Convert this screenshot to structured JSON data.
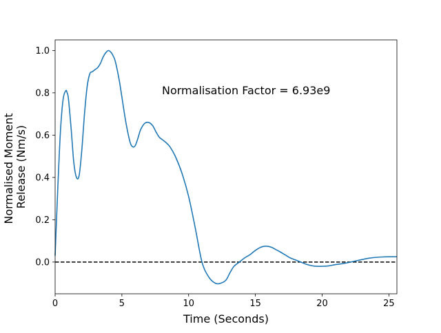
{
  "colors": {
    "series": "#1f77b4",
    "zero_line": "#000000",
    "axes": "#000000",
    "background": "#ffffff"
  },
  "chart_data": {
    "type": "line",
    "title": "",
    "xlabel": "Time (Seconds)",
    "ylabel_lines": [
      "Normalised Moment",
      "Release (Nm/s)"
    ],
    "xlim": [
      0,
      25.6
    ],
    "ylim": [
      -0.15,
      1.05
    ],
    "xticks": [
      0,
      5,
      10,
      15,
      20,
      25
    ],
    "yticks": [
      0.0,
      0.2,
      0.4,
      0.6,
      0.8,
      1.0
    ],
    "xtick_labels": [
      "0",
      "5",
      "10",
      "15",
      "20",
      "25"
    ],
    "ytick_labels": [
      "0.0",
      "0.2",
      "0.4",
      "0.6",
      "0.8",
      "1.0"
    ],
    "grid": false,
    "annotation": {
      "text": "Normalisation Factor = 6.93e9",
      "x": 8.0,
      "y": 0.81
    },
    "reference_line": {
      "y": 0.0,
      "style": "dashed"
    },
    "series": [
      {
        "x": [
          0,
          0.2,
          0.4,
          0.6,
          0.8,
          0.9,
          1.0,
          1.2,
          1.4,
          1.6,
          1.8,
          2.0,
          2.2,
          2.4,
          2.6,
          2.8,
          3.0,
          3.2,
          3.4,
          3.6,
          3.8,
          4.0,
          4.2,
          4.3,
          4.5,
          4.8,
          5.0,
          5.3,
          5.6,
          5.8,
          6.0,
          6.2,
          6.4,
          6.7,
          7.0,
          7.3,
          7.6,
          7.8,
          8.0,
          8.3,
          8.6,
          9.0,
          9.5,
          10.0,
          10.5,
          11.0,
          11.5,
          12.0,
          12.4,
          12.8,
          13.1,
          13.4,
          13.8,
          14.2,
          14.6,
          15.0,
          15.4,
          15.8,
          16.2,
          16.5,
          16.8,
          17.2,
          17.6,
          18.0,
          18.4,
          18.8,
          19.2,
          19.6,
          20.0,
          20.5,
          21.0,
          21.5,
          22.0,
          22.5,
          23.0,
          23.5,
          24.0,
          24.5,
          25.0,
          25.6
        ],
        "y": [
          0.03,
          0.35,
          0.62,
          0.77,
          0.81,
          0.8,
          0.77,
          0.63,
          0.47,
          0.4,
          0.41,
          0.53,
          0.7,
          0.83,
          0.89,
          0.9,
          0.91,
          0.92,
          0.94,
          0.97,
          0.99,
          1.0,
          0.99,
          0.98,
          0.95,
          0.86,
          0.78,
          0.66,
          0.57,
          0.545,
          0.55,
          0.585,
          0.625,
          0.655,
          0.66,
          0.645,
          0.61,
          0.59,
          0.58,
          0.565,
          0.545,
          0.5,
          0.42,
          0.31,
          0.16,
          0.0,
          -0.07,
          -0.1,
          -0.1,
          -0.085,
          -0.05,
          -0.02,
          0.0,
          0.02,
          0.035,
          0.055,
          0.07,
          0.075,
          0.07,
          0.06,
          0.05,
          0.035,
          0.02,
          0.01,
          0.0,
          -0.01,
          -0.017,
          -0.02,
          -0.02,
          -0.018,
          -0.012,
          -0.008,
          -0.002,
          0.005,
          0.012,
          0.018,
          0.022,
          0.024,
          0.025,
          0.025
        ]
      }
    ]
  }
}
